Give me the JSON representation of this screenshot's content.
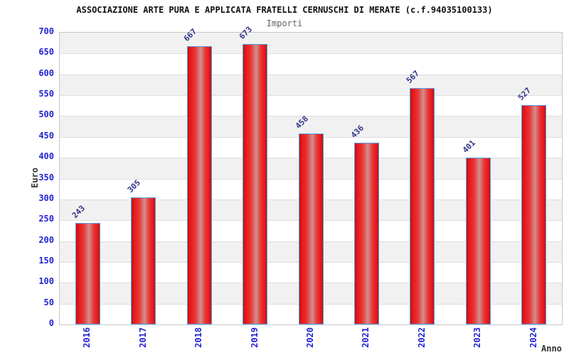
{
  "chart_data": {
    "type": "bar",
    "title": "ASSOCIAZIONE ARTE PURA E APPLICATA FRATELLI CERNUSCHI DI MERATE (c.f.94035100133)",
    "subtitle": "Importi",
    "xlabel": "Anno",
    "ylabel": "Euro",
    "categories": [
      "2016",
      "2017",
      "2018",
      "2019",
      "2020",
      "2021",
      "2022",
      "2023",
      "2024"
    ],
    "values": [
      243,
      305,
      667,
      673,
      458,
      436,
      567,
      401,
      527
    ],
    "ylim": [
      0,
      700
    ],
    "ytick_step": 50,
    "legend": "none",
    "grid": "alternating horizontal bands every 50 units with light gridlines",
    "value_label_angle_deg": -45,
    "xtick_label_angle_deg": -90,
    "colors": {
      "title": "#111111",
      "subtitle": "#666666",
      "tick_label": "#2323d3",
      "value_label": "#333388",
      "axis_title": "#333333",
      "bar_edge": "#c11212",
      "bar_main": "#e81a1a",
      "bar_mid": "#ea3535",
      "bar_highlight": "#d08f8f",
      "bar_border": "#55a0e8",
      "band_gray": "#f1f1f1",
      "band_white": "#ffffff",
      "grid_line": "#dedede",
      "plot_border": "#c6c6c6"
    }
  }
}
